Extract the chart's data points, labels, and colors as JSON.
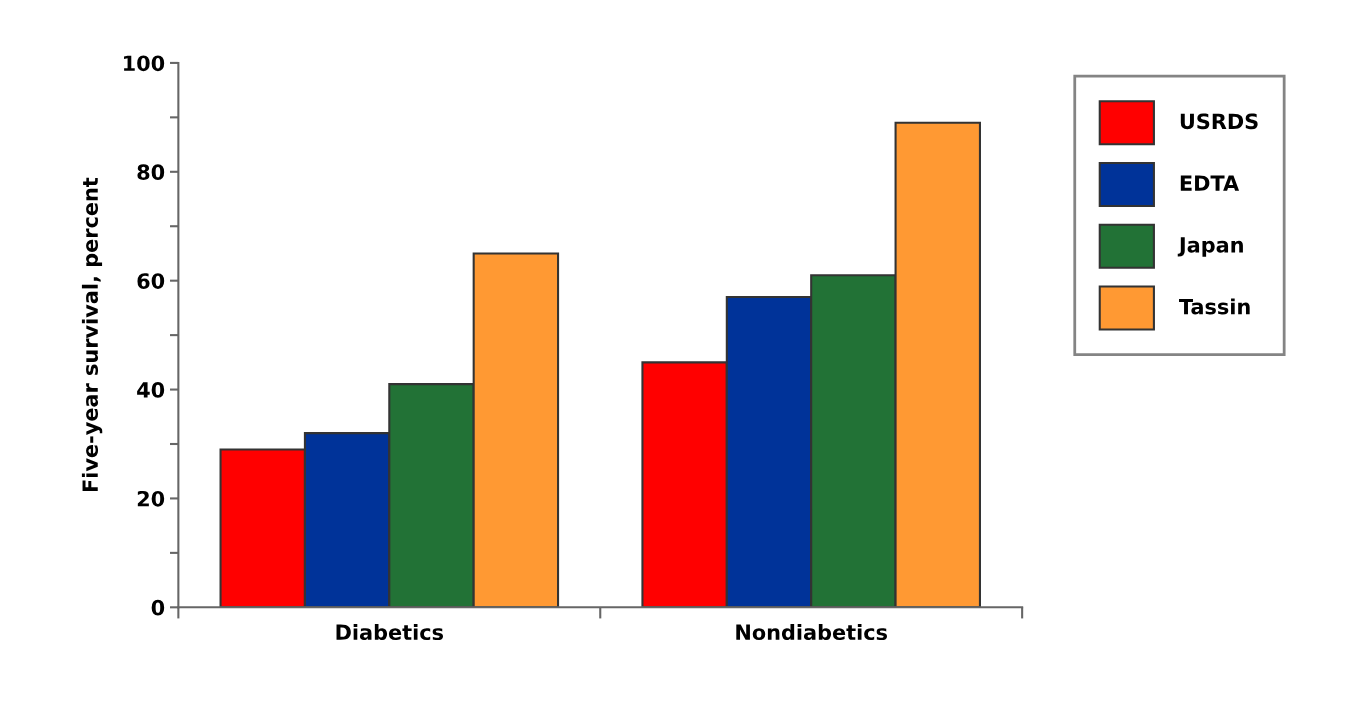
{
  "chart_data": {
    "type": "bar",
    "ylabel": "Five-year survival, percent",
    "categories": [
      "Diabetics",
      "Nondiabetics"
    ],
    "series": [
      {
        "name": "USRDS",
        "color": "#ff0000",
        "values": [
          29,
          45
        ]
      },
      {
        "name": "EDTA",
        "color": "#003399",
        "values": [
          32,
          57
        ]
      },
      {
        "name": "Japan",
        "color": "#227236",
        "values": [
          41,
          61
        ]
      },
      {
        "name": "Tassin",
        "color": "#ff9933",
        "values": [
          65,
          89
        ]
      }
    ],
    "ylim": [
      0,
      100
    ],
    "yticks": [
      0,
      {
        "value": 10,
        "label": null
      },
      20,
      {
        "value": 30,
        "label": null
      },
      40,
      {
        "value": 50,
        "label": null
      },
      60,
      {
        "value": 70,
        "label": null
      },
      80,
      {
        "value": 90,
        "label": null
      },
      100
    ],
    "grid": false,
    "legend": "right"
  }
}
